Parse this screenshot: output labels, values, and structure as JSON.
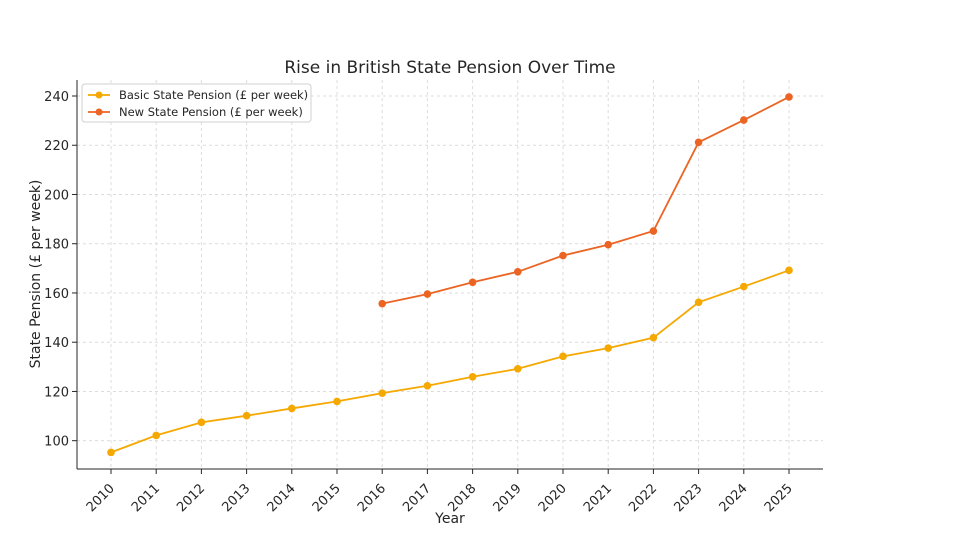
{
  "chart_data": {
    "type": "line",
    "title": "Rise in British State Pension Over Time",
    "xlabel": "Year",
    "ylabel": "State Pension (£ per week)",
    "x": [
      2010,
      2011,
      2012,
      2013,
      2014,
      2015,
      2016,
      2017,
      2018,
      2019,
      2020,
      2021,
      2022,
      2023,
      2024,
      2025
    ],
    "ylim": [
      88.5,
      246.5
    ],
    "yticks": [
      100,
      120,
      140,
      160,
      180,
      200,
      220,
      240
    ],
    "grid": true,
    "legend_position": "top-left",
    "series": [
      {
        "name": "Basic State Pension (£ per week)",
        "color": "#f5a800",
        "values": [
          95.25,
          102.15,
          107.45,
          110.15,
          113.1,
          115.95,
          119.3,
          122.3,
          125.95,
          129.2,
          134.25,
          137.6,
          141.85,
          156.2,
          162.6,
          169.2
        ]
      },
      {
        "name": "New State Pension (£ per week)",
        "color": "#eb6423",
        "values": [
          null,
          null,
          null,
          null,
          null,
          null,
          155.65,
          159.55,
          164.35,
          168.6,
          175.2,
          179.6,
          185.15,
          221.2,
          230.25,
          239.6
        ]
      }
    ]
  }
}
